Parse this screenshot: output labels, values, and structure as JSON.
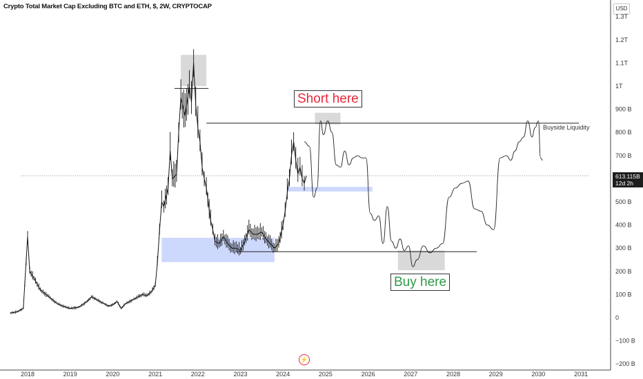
{
  "title": "Crypto Total Market Cap Excluding BTC and ETH, $, 2W, CRYPTOCAP",
  "currency_label": "USD",
  "current_price": "613.115B",
  "countdown": "12d 2h",
  "annotations": {
    "short": "Short here",
    "buy": "Buy here",
    "buyside": "Buyside Liquidity"
  },
  "logo_icon": "tradingview-icon",
  "colors": {
    "accent_red": "#e8283a",
    "accent_green": "#2f9a48",
    "zone_blue": "#cdd8fd",
    "zone_grey": "#d9d9d9"
  },
  "chart_data": {
    "type": "line",
    "title": "Crypto Total Market Cap Excluding BTC and ETH, $, 2W, CRYPTOCAP",
    "xlabel": "",
    "ylabel": "",
    "x_ticks": [
      "2018",
      "2019",
      "2020",
      "2021",
      "2022",
      "2023",
      "2024",
      "2025",
      "2026",
      "2027",
      "2028",
      "2029",
      "2030",
      "2031"
    ],
    "y_ticks": [
      "1.3T",
      "1.2T",
      "1.1T",
      "1T",
      "900 B",
      "800 B",
      "700 B",
      "600 B",
      "500 B",
      "400 B",
      "300 B",
      "200 B",
      "100 B",
      "0",
      "−100 B",
      "−200 B"
    ],
    "y_tick_values": [
      1300,
      1200,
      1100,
      1000,
      900,
      800,
      700,
      600,
      500,
      400,
      300,
      200,
      100,
      0,
      -100,
      -200
    ],
    "xlim": [
      2017.85,
      2031.2
    ],
    "ylim": [
      -210,
      1310
    ],
    "y_unit": "B",
    "current_value": 613.115,
    "series": [
      {
        "values_x": [
          2017.6,
          2017.75,
          2017.9,
          2018.0,
          2018.05,
          2018.15,
          2018.3,
          2018.5,
          2018.7,
          2018.9,
          2019.0,
          2019.2,
          2019.4,
          2019.5,
          2019.6,
          2019.8,
          2019.9,
          2020.0,
          2020.1,
          2020.2,
          2020.3,
          2020.5,
          2020.6,
          2020.7,
          2020.8,
          2020.9,
          2021.0,
          2021.05,
          2021.1,
          2021.15,
          2021.2,
          2021.3,
          2021.35,
          2021.4,
          2021.5,
          2021.55,
          2021.6,
          2021.7,
          2021.8,
          2021.85,
          2021.9,
          2021.95,
          2022.0,
          2022.05,
          2022.1,
          2022.15,
          2022.2,
          2022.3,
          2022.35,
          2022.4,
          2022.5,
          2022.6,
          2022.7,
          2022.8,
          2022.9,
          2023.0,
          2023.1,
          2023.2,
          2023.3,
          2023.4,
          2023.5,
          2023.6,
          2023.7,
          2023.8,
          2023.9,
          2024.0,
          2024.05,
          2024.1,
          2024.15,
          2024.2,
          2024.25,
          2024.3,
          2024.35,
          2024.4,
          2024.45,
          2024.5,
          2024.55
        ],
        "values_y": [
          20,
          25,
          40,
          350,
          200,
          170,
          120,
          90,
          60,
          45,
          40,
          45,
          70,
          90,
          80,
          60,
          50,
          55,
          70,
          40,
          60,
          80,
          90,
          100,
          95,
          110,
          140,
          240,
          380,
          500,
          480,
          560,
          720,
          600,
          620,
          800,
          950,
          870,
          1000,
          930,
          1100,
          920,
          820,
          760,
          650,
          600,
          560,
          420,
          380,
          330,
          320,
          350,
          320,
          300,
          300,
          290,
          330,
          380,
          360,
          360,
          370,
          340,
          320,
          300,
          320,
          400,
          460,
          540,
          600,
          700,
          760,
          680,
          620,
          650,
          600,
          580,
          613
        ]
      },
      {
        "values_x": [
          2024.5,
          2024.62,
          2024.72,
          2024.8,
          2024.88,
          2024.95,
          2025.05,
          2025.15,
          2025.25,
          2025.35,
          2025.45,
          2025.55,
          2025.65,
          2025.75,
          2025.85,
          2025.95,
          2026.05,
          2026.15,
          2026.25,
          2026.35,
          2026.45,
          2026.55,
          2026.65,
          2026.75,
          2026.85,
          2026.95,
          2027.05,
          2027.15,
          2027.3,
          2027.45,
          2027.6,
          2027.75,
          2027.9,
          2028.05,
          2028.2,
          2028.35,
          2028.5,
          2028.65,
          2028.8,
          2028.95,
          2029.1,
          2029.25,
          2029.35,
          2029.45,
          2029.55,
          2029.65,
          2029.75,
          2029.85,
          2029.92,
          2030.0,
          2030.05,
          2030.1
        ],
        "values_y": [
          760,
          740,
          520,
          560,
          850,
          790,
          850,
          800,
          660,
          650,
          720,
          660,
          690,
          700,
          690,
          690,
          450,
          420,
          440,
          320,
          480,
          330,
          300,
          340,
          290,
          310,
          220,
          250,
          310,
          280,
          300,
          320,
          520,
          560,
          580,
          590,
          470,
          460,
          400,
          380,
          690,
          700,
          680,
          720,
          760,
          780,
          850,
          780,
          820,
          850,
          690,
          680
        ]
      }
    ],
    "zones": [
      {
        "label": "demand",
        "x": [
          2021.15,
          2023.8
        ],
        "y": [
          240,
          345
        ]
      },
      {
        "label": "demand",
        "x": [
          2024.1,
          2026.1
        ],
        "y": [
          545,
          565
        ]
      },
      {
        "label": "supply",
        "x": [
          2021.6,
          2022.2
        ],
        "y": [
          1000,
          1135
        ]
      },
      {
        "label": "supply",
        "x": [
          2024.75,
          2025.35
        ],
        "y": [
          835,
          885
        ]
      },
      {
        "label": "buy",
        "x": [
          2026.7,
          2027.8
        ],
        "y": [
          205,
          290
        ]
      }
    ],
    "levels": [
      {
        "y": 840,
        "x": [
          2022.2,
          2030.95
        ],
        "label": "Buyside Liquidity"
      },
      {
        "y": 990,
        "x": [
          2021.45,
          2022.25
        ]
      },
      {
        "y": 285,
        "x": [
          2022.9,
          2028.55
        ]
      },
      {
        "y": 613,
        "x": [
          2017.85,
          2031.2
        ],
        "style": "dotted"
      }
    ]
  }
}
